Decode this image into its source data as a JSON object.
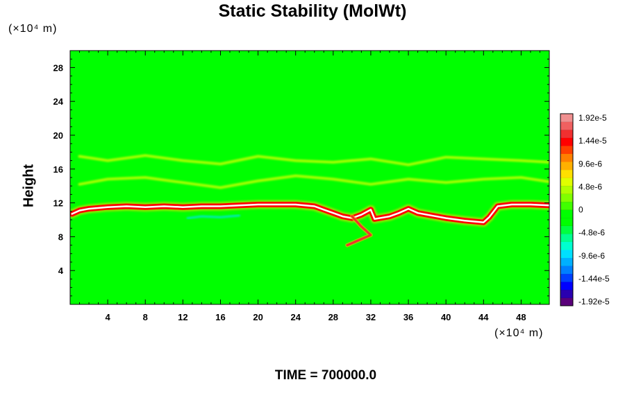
{
  "chart_data": {
    "type": "heatmap",
    "title": "Static Stability (MolWt)",
    "ylabel": "Height",
    "xlabel": "",
    "x_unit": "(×10⁴ m)",
    "y_unit": "(×10⁴ m)",
    "xlim": [
      0,
      51
    ],
    "ylim": [
      0,
      30
    ],
    "x_ticks": [
      4,
      8,
      12,
      16,
      20,
      24,
      28,
      32,
      36,
      40,
      44,
      48
    ],
    "y_ticks": [
      4,
      8,
      12,
      16,
      20,
      24,
      28
    ],
    "x_tick_labels": [
      "4",
      "8",
      "12",
      "16",
      "20",
      "24",
      "28",
      "32",
      "36",
      "40",
      "44",
      "48"
    ],
    "y_tick_labels": [
      "4",
      "8",
      "12",
      "16",
      "20",
      "24",
      "28"
    ],
    "colorbar": {
      "min": -1.92e-05,
      "max": 1.92e-05,
      "labels": [
        "1.92e-5",
        "1.44e-5",
        "9.6e-6",
        "4.8e-6",
        "0",
        "-4.8e-6",
        "-9.6e-6",
        "-1.44e-5",
        "-1.92e-5"
      ],
      "colors": [
        "#5a007a",
        "#2a00b0",
        "#0000ff",
        "#0040ff",
        "#0080ff",
        "#00b0ff",
        "#00e0ff",
        "#00ffd0",
        "#00ff90",
        "#00ff40",
        "#00ff00",
        "#00ff00",
        "#40ff00",
        "#80ff00",
        "#b0ff00",
        "#e0ff00",
        "#ffe000",
        "#ffb000",
        "#ff8000",
        "#ff4000",
        "#ff0000",
        "#f03030",
        "#f06060",
        "#f09090"
      ]
    },
    "background_value": 0,
    "features": [
      {
        "name": "tropopause-band",
        "value": 1.92e-05,
        "points": [
          [
            0.2,
            10.7
          ],
          [
            1,
            11.1
          ],
          [
            2,
            11.3
          ],
          [
            4,
            11.5
          ],
          [
            6,
            11.6
          ],
          [
            8,
            11.5
          ],
          [
            10,
            11.6
          ],
          [
            12,
            11.5
          ],
          [
            14,
            11.6
          ],
          [
            16,
            11.6
          ],
          [
            18,
            11.7
          ],
          [
            20,
            11.8
          ],
          [
            22,
            11.8
          ],
          [
            24,
            11.8
          ],
          [
            26,
            11.6
          ],
          [
            27,
            11.2
          ],
          [
            28,
            10.8
          ],
          [
            29,
            10.4
          ],
          [
            30,
            10.2
          ],
          [
            31,
            10.6
          ],
          [
            32,
            11.2
          ],
          [
            32.4,
            10.1
          ],
          [
            34,
            10.4
          ],
          [
            35,
            10.8
          ],
          [
            36,
            11.3
          ],
          [
            37,
            10.8
          ],
          [
            38,
            10.6
          ],
          [
            40,
            10.2
          ],
          [
            42,
            9.9
          ],
          [
            44,
            9.7
          ],
          [
            44.6,
            10.3
          ],
          [
            45.5,
            11.6
          ],
          [
            47,
            11.8
          ],
          [
            49,
            11.8
          ],
          [
            51,
            11.7
          ]
        ]
      },
      {
        "name": "descending-branch",
        "value": 1.44e-05,
        "points": [
          [
            30,
            10.4
          ],
          [
            31,
            9.2
          ],
          [
            32,
            8.2
          ],
          [
            29.5,
            7.0
          ]
        ]
      },
      {
        "name": "upper-wave",
        "value": 4.8e-06,
        "points": [
          [
            1,
            17.5
          ],
          [
            4,
            17.0
          ],
          [
            8,
            17.6
          ],
          [
            12,
            17.0
          ],
          [
            16,
            16.6
          ],
          [
            20,
            17.5
          ],
          [
            24,
            17.0
          ],
          [
            28,
            16.8
          ],
          [
            32,
            17.2
          ],
          [
            36,
            16.5
          ],
          [
            40,
            17.4
          ],
          [
            44,
            17.2
          ],
          [
            48,
            17.0
          ],
          [
            51,
            16.8
          ]
        ]
      },
      {
        "name": "lower-wave",
        "value": 4.8e-06,
        "points": [
          [
            1,
            14.2
          ],
          [
            4,
            14.8
          ],
          [
            8,
            15.0
          ],
          [
            12,
            14.4
          ],
          [
            16,
            13.8
          ],
          [
            20,
            14.6
          ],
          [
            24,
            15.2
          ],
          [
            28,
            14.8
          ],
          [
            32,
            14.2
          ],
          [
            36,
            14.8
          ],
          [
            40,
            14.4
          ],
          [
            44,
            14.8
          ],
          [
            48,
            15.0
          ],
          [
            51,
            14.5
          ]
        ]
      },
      {
        "name": "negative-patch",
        "value": -9.6e-06,
        "points": [
          [
            12.5,
            10.2
          ],
          [
            14,
            10.4
          ],
          [
            16,
            10.3
          ],
          [
            18,
            10.5
          ]
        ]
      }
    ]
  },
  "footer": {
    "time_label": "TIME = 700000.0"
  }
}
